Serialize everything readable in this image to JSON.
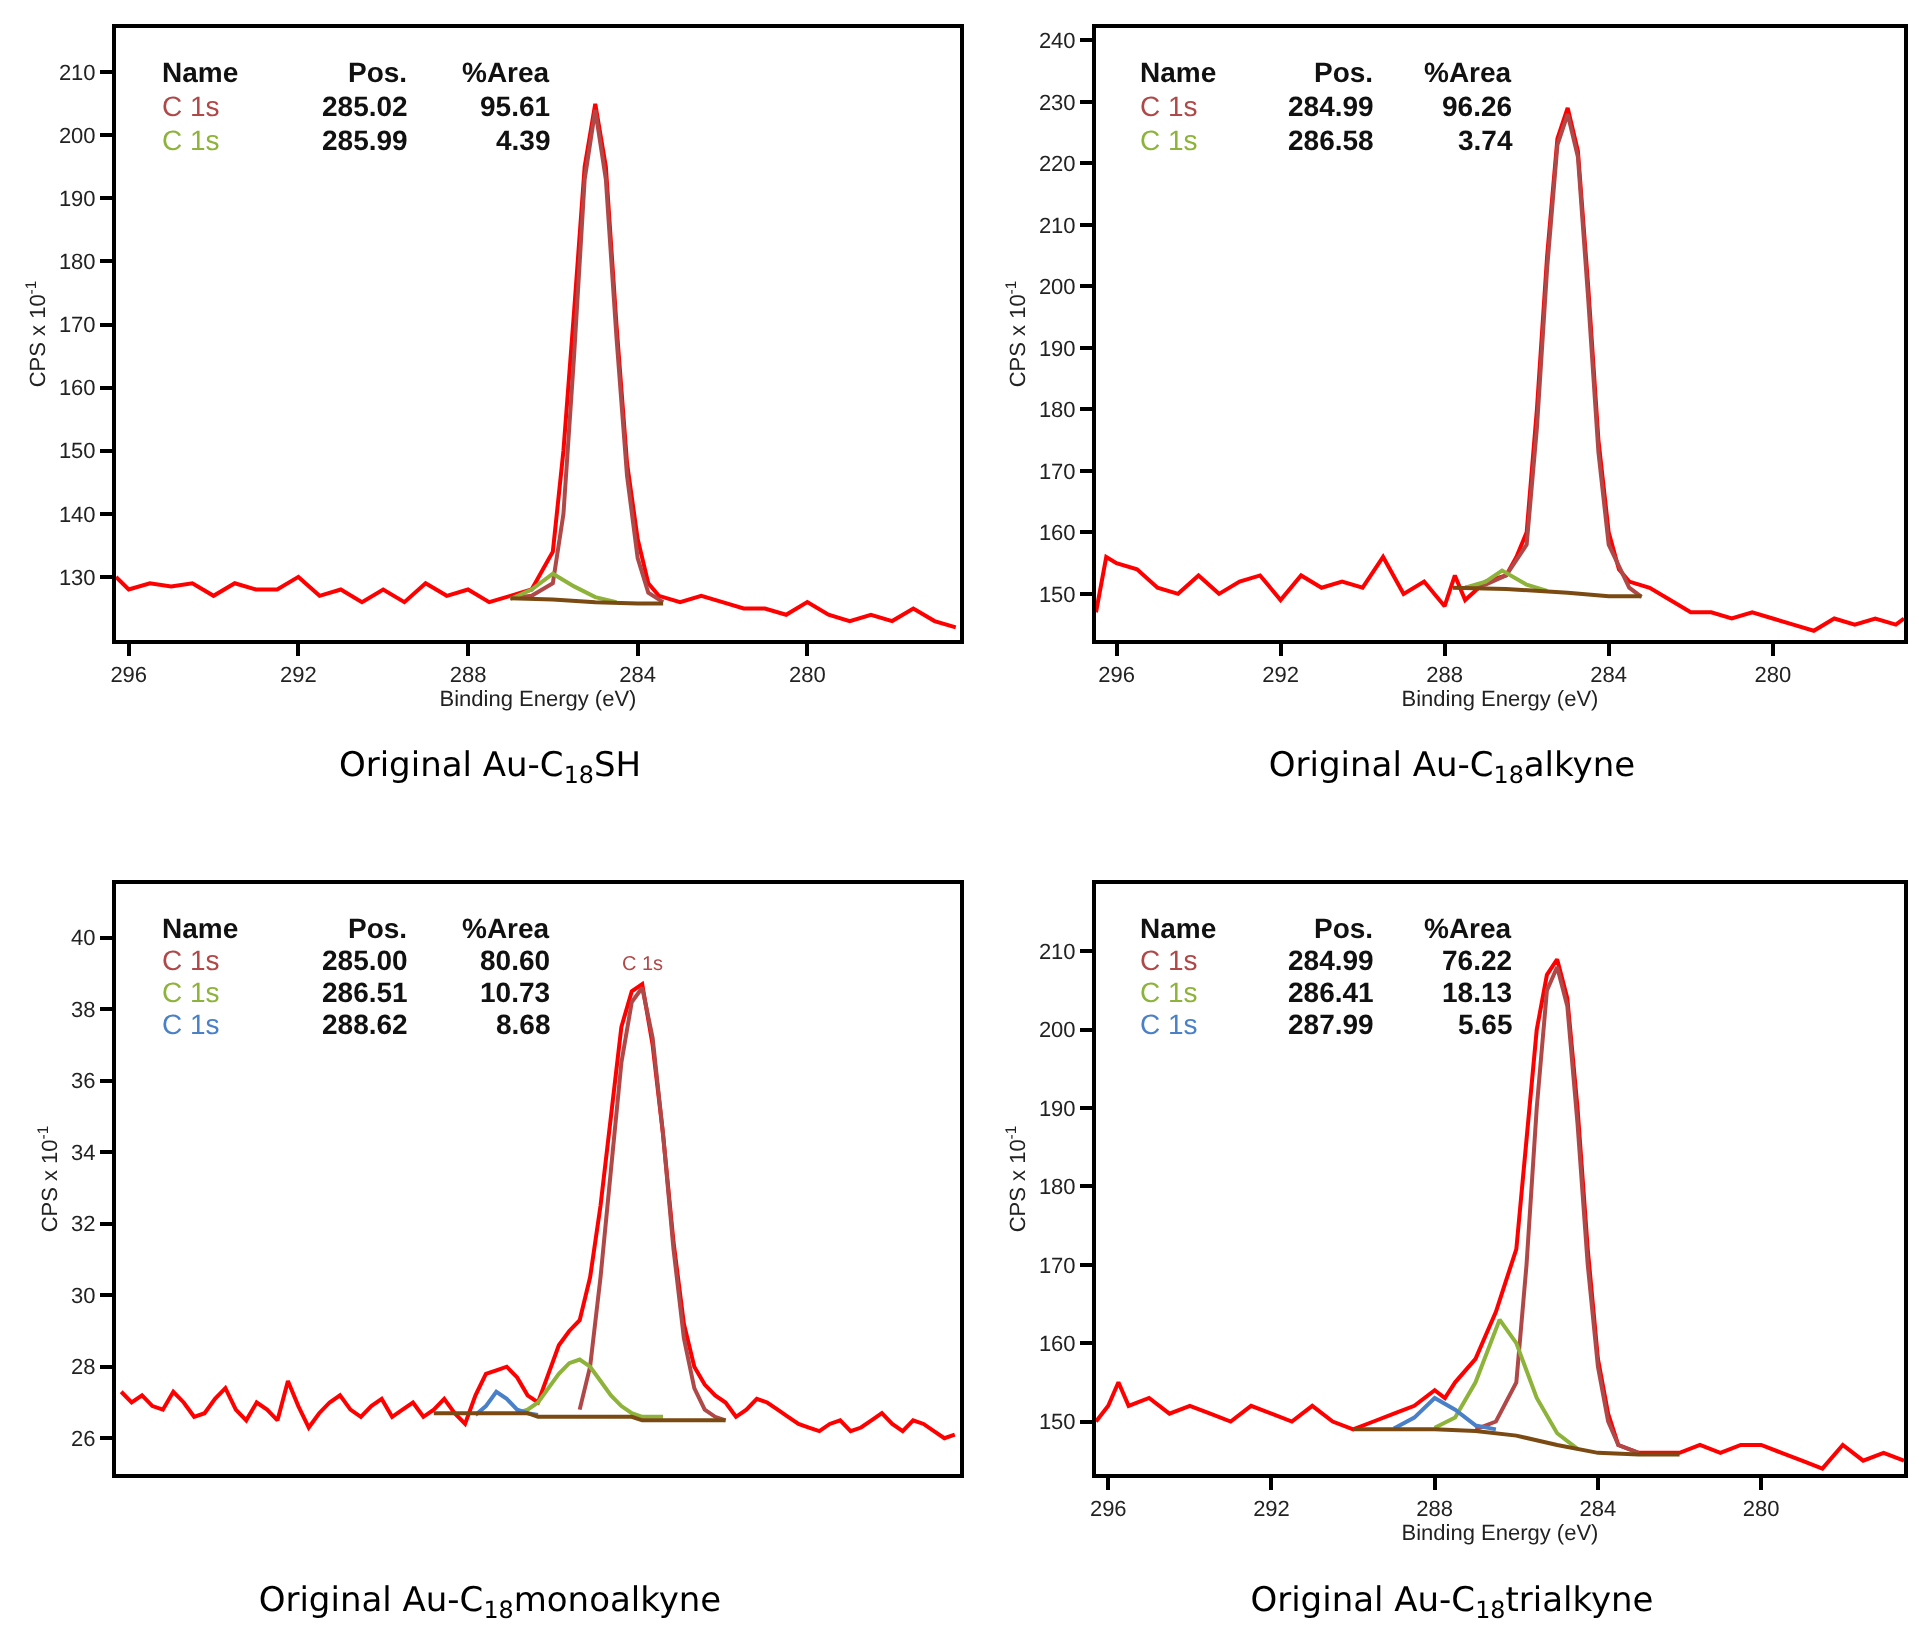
{
  "chart_data": [
    {
      "type": "line",
      "title": "Original Au-C$_{18}$SH",
      "xlabel": "Binding Energy (eV)",
      "ylabel": "CPS x 10$^{-1}$",
      "xlim": [
        296.3,
        276.4
      ],
      "xticks": [
        296,
        292,
        288,
        284,
        280
      ],
      "ylim": [
        120,
        217
      ],
      "yticks": [
        130,
        140,
        150,
        160,
        170,
        180,
        190,
        200,
        210
      ],
      "grid": false,
      "legend": "top left",
      "marker": "none",
      "line_style": "solid",
      "annotations": [
        "Name",
        "Pos.",
        "%Area",
        "285.02",
        "95.61",
        "285.99",
        "4.39"
      ],
      "series": [
        {
          "color": "#ff0000",
          "x": [
            296.3,
            296,
            295.5,
            295,
            294.5,
            294,
            293.5,
            293,
            292.5,
            292,
            291.5,
            291,
            290.5,
            290,
            289.5,
            289,
            288.5,
            288,
            287.5,
            287,
            286.5,
            286.25,
            286,
            285.75,
            285.5,
            285.25,
            285,
            284.75,
            284.5,
            284.25,
            284,
            283.75,
            283.5,
            283,
            282.5,
            282,
            281.5,
            281,
            280.5,
            280,
            279.5,
            279,
            278.5,
            278,
            277.5,
            277,
            276.5
          ],
          "values": [
            130,
            128,
            129,
            128.5,
            129,
            127,
            129,
            128,
            128,
            130,
            127,
            128,
            126,
            128,
            126,
            129,
            127,
            128,
            126,
            127,
            128,
            131,
            134,
            150,
            172,
            195,
            205,
            195,
            170,
            148,
            136,
            129,
            127,
            126,
            127,
            126,
            125,
            125,
            124,
            126,
            124,
            123,
            124,
            123,
            125,
            123,
            122
          ]
        },
        {
          "name": "C 1s",
          "color": "#b04848",
          "x": [
            287,
            286.5,
            286,
            285.75,
            285.5,
            285.25,
            285,
            284.75,
            284.5,
            284.25,
            284,
            283.75,
            283.4
          ],
          "values": [
            126.6,
            127,
            129,
            140,
            165,
            193,
            204,
            193,
            168,
            146,
            133,
            127.5,
            126
          ]
        },
        {
          "name": "C 1s",
          "color": "#8db33a",
          "x": [
            287,
            286.5,
            286,
            285.5,
            285,
            284.5
          ],
          "values": [
            126.5,
            128,
            130.5,
            128.5,
            126.8,
            126
          ]
        },
        {
          "color": "#7a4a12",
          "x": [
            287,
            286,
            285,
            284,
            283.4
          ],
          "values": [
            126.6,
            126.4,
            126,
            125.8,
            125.8
          ]
        }
      ]
    },
    {
      "type": "line",
      "title": "Original Au-C$_{18}$alkyne",
      "xlabel": "Binding Energy (eV)",
      "ylabel": "CPS x 10$^{-1}$",
      "xlim": [
        296.5,
        276.8
      ],
      "xticks": [
        296,
        292,
        288,
        284,
        280
      ],
      "ylim": [
        142.5,
        242
      ],
      "yticks": [
        150,
        160,
        170,
        180,
        190,
        200,
        210,
        220,
        230,
        240
      ],
      "grid": false,
      "legend": "top left",
      "marker": "none",
      "line_style": "solid",
      "annotations": [
        "Name",
        "Pos.",
        "%Area",
        "284.99",
        "96.26",
        "286.58",
        "3.74"
      ],
      "series": [
        {
          "color": "#ff0000",
          "x": [
            296.5,
            296.25,
            296,
            295.5,
            295,
            294.5,
            294,
            293.5,
            293,
            292.5,
            292,
            291.5,
            291,
            290.5,
            290,
            289.5,
            289,
            288.5,
            288,
            287.75,
            287.5,
            287,
            286.5,
            286.25,
            286,
            285.75,
            285.5,
            285.25,
            285,
            284.75,
            284.5,
            284.25,
            284,
            283.75,
            283.5,
            283,
            282.5,
            282,
            281.5,
            281,
            280.5,
            280,
            279.5,
            279,
            278.5,
            278,
            277.5,
            277,
            276.8
          ],
          "values": [
            147,
            156,
            155,
            154,
            151,
            150,
            153,
            150,
            152,
            153,
            149,
            153,
            151,
            152,
            151,
            156,
            150,
            152,
            148,
            153,
            149,
            152,
            153,
            156,
            160,
            180,
            205,
            224,
            229,
            222,
            200,
            175,
            160,
            154,
            152,
            151,
            149,
            147,
            147,
            146,
            147,
            146,
            145,
            144,
            146,
            145,
            146,
            145,
            146
          ]
        },
        {
          "name": "C 1s",
          "color": "#b04848",
          "x": [
            287.5,
            287,
            286.5,
            286,
            285.75,
            285.5,
            285.25,
            285,
            284.75,
            284.5,
            284.25,
            284,
            283.5,
            283.2
          ],
          "values": [
            151,
            151.5,
            153,
            158,
            177,
            203,
            223,
            228,
            221,
            198,
            173,
            158,
            151,
            149.5
          ]
        },
        {
          "name": "C 1s",
          "color": "#8db33a",
          "x": [
            287.5,
            287,
            286.6,
            286,
            285.5
          ],
          "values": [
            151,
            152,
            153.8,
            151.5,
            150.5
          ]
        },
        {
          "color": "#7a4a12",
          "x": [
            287.8,
            286.5,
            285,
            284,
            283.2
          ],
          "values": [
            151,
            150.8,
            150.2,
            149.6,
            149.6
          ]
        }
      ]
    },
    {
      "type": "line",
      "title": "Original Au-C$_{18}$monoalkyne",
      "ylabel": "CPS x 10$^{-1}$",
      "ylim": [
        25,
        41.5
      ],
      "yticks": [
        26,
        28,
        30,
        32,
        34,
        36,
        38,
        40
      ],
      "tick_labels": "y",
      "grid": false,
      "legend": "top left",
      "marker": "none",
      "line_style": "solid",
      "categories": [
        null,
        null,
        null,
        null,
        null,
        null,
        null,
        null,
        null,
        null,
        null,
        null,
        null,
        null,
        null,
        null,
        null,
        null,
        null,
        null,
        null,
        null,
        null,
        null,
        null,
        null,
        null,
        null,
        null,
        null,
        null,
        null,
        null,
        null,
        null,
        null,
        null,
        null,
        null,
        null,
        null,
        null,
        null,
        null,
        null,
        null,
        null,
        null,
        null,
        null,
        null,
        null,
        null,
        null,
        null,
        null,
        null,
        null,
        null,
        null,
        null,
        null,
        null,
        null,
        null,
        null,
        null,
        null,
        null,
        null,
        null,
        null,
        null,
        null,
        null,
        null,
        null,
        null,
        null,
        null,
        null
      ],
      "annotations": [
        "Name",
        "Pos.",
        "%Area",
        "285.00",
        "80.60",
        "286.51",
        "10.73",
        "288.62",
        "8.68",
        "C 1s"
      ],
      "series": [
        {
          "color": "#ff0000",
          "values": [
            27.3,
            27.0,
            27.2,
            26.9,
            26.8,
            27.3,
            27.0,
            26.6,
            26.7,
            27.1,
            27.4,
            26.8,
            26.5,
            27.0,
            26.8,
            26.5,
            27.6,
            26.9,
            26.3,
            26.7,
            27.0,
            27.2,
            26.8,
            26.6,
            26.9,
            27.1,
            26.6,
            26.8,
            27.0,
            26.6,
            26.8,
            27.1,
            26.7,
            26.4,
            27.2,
            27.8,
            27.9,
            28.0,
            27.7,
            27.2,
            27.0,
            27.8,
            28.6,
            29.0,
            29.3,
            30.5,
            32.5,
            35.0,
            37.5,
            38.5,
            38.7,
            37.0,
            34.5,
            31.5,
            29.2,
            28.0,
            27.5,
            27.2,
            27.0,
            26.6,
            26.8,
            27.1,
            27.0,
            26.8,
            26.6,
            26.4,
            26.3,
            26.2,
            26.4,
            26.5,
            26.2,
            26.3,
            26.5,
            26.7,
            26.4,
            26.2,
            26.5,
            26.4,
            26.2,
            26.0,
            26.1
          ]
        },
        {
          "name": "C 1s",
          "color": "#b04848",
          "values": [
            null,
            null,
            null,
            null,
            null,
            null,
            null,
            null,
            null,
            null,
            null,
            null,
            null,
            null,
            null,
            null,
            null,
            null,
            null,
            null,
            null,
            null,
            null,
            null,
            null,
            null,
            null,
            null,
            null,
            null,
            null,
            null,
            null,
            null,
            null,
            null,
            null,
            null,
            null,
            null,
            null,
            null,
            null,
            null,
            26.8,
            28.0,
            30.5,
            33.5,
            36.5,
            38.2,
            38.6,
            37.2,
            34.5,
            31.3,
            28.8,
            27.4,
            26.8,
            26.6,
            26.5,
            null,
            null,
            null,
            null,
            null,
            null,
            null,
            null,
            null,
            null,
            null,
            null,
            null,
            null,
            null,
            null,
            null,
            null,
            null,
            null,
            null,
            null
          ]
        },
        {
          "name": "C 1s",
          "color": "#8db33a",
          "values": [
            null,
            null,
            null,
            null,
            null,
            null,
            null,
            null,
            null,
            null,
            null,
            null,
            null,
            null,
            null,
            null,
            null,
            null,
            null,
            null,
            null,
            null,
            null,
            null,
            null,
            null,
            null,
            null,
            null,
            null,
            null,
            null,
            null,
            null,
            null,
            null,
            null,
            null,
            26.7,
            26.8,
            27.0,
            27.4,
            27.8,
            28.1,
            28.2,
            28.0,
            27.6,
            27.2,
            26.9,
            26.7,
            26.6,
            26.6,
            26.6,
            null,
            null,
            null,
            null,
            null,
            null,
            null,
            null,
            null,
            null,
            null,
            null,
            null,
            null,
            null,
            null,
            null,
            null,
            null,
            null,
            null,
            null,
            null,
            null,
            null,
            null,
            null,
            null
          ]
        },
        {
          "name": "C 1s",
          "color": "#4a80c8",
          "values": [
            null,
            null,
            null,
            null,
            null,
            null,
            null,
            null,
            null,
            null,
            null,
            null,
            null,
            null,
            null,
            null,
            null,
            null,
            null,
            null,
            null,
            null,
            null,
            null,
            null,
            null,
            null,
            null,
            null,
            null,
            null,
            null,
            null,
            null,
            26.65,
            26.9,
            27.3,
            27.1,
            26.8,
            26.7,
            26.65,
            null,
            null,
            null,
            null,
            null,
            null,
            null,
            null,
            null,
            null,
            null,
            null,
            null,
            null,
            null,
            null,
            null,
            null,
            null,
            null,
            null,
            null,
            null,
            null,
            null,
            null,
            null,
            null,
            null,
            null,
            null,
            null,
            null,
            null,
            null,
            null,
            null,
            null,
            null,
            null
          ]
        },
        {
          "color": "#7a4a12",
          "values": [
            null,
            null,
            null,
            null,
            null,
            null,
            null,
            null,
            null,
            null,
            null,
            null,
            null,
            null,
            null,
            null,
            null,
            null,
            null,
            null,
            null,
            null,
            null,
            null,
            null,
            null,
            null,
            null,
            null,
            null,
            26.7,
            26.7,
            26.7,
            26.7,
            26.7,
            26.7,
            26.7,
            26.7,
            26.7,
            26.7,
            26.6,
            26.6,
            26.6,
            26.6,
            26.6,
            26.6,
            26.6,
            26.6,
            26.6,
            26.6,
            26.5,
            26.5,
            26.5,
            26.5,
            26.5,
            26.5,
            26.5,
            26.5,
            26.5,
            null,
            null,
            null,
            null,
            null,
            null,
            null,
            null,
            null,
            null,
            null,
            null,
            null,
            null,
            null,
            null,
            null,
            null,
            null,
            null,
            null,
            null
          ]
        }
      ]
    },
    {
      "type": "line",
      "title": "Original Au-C$_{18}$trialkyne",
      "xlabel": "Binding Energy (eV)",
      "ylabel": "CPS x 10$^{-1}$",
      "xlim": [
        296.3,
        276.5
      ],
      "xticks": [
        296,
        292,
        288,
        284,
        280
      ],
      "ylim": [
        143.3,
        218.6
      ],
      "yticks": [
        150,
        160,
        170,
        180,
        190,
        200,
        210
      ],
      "grid": false,
      "legend": "top left",
      "marker": "none",
      "line_style": "solid",
      "annotations": [
        "Name",
        "Pos.",
        "%Area",
        "284.99",
        "76.22",
        "286.41",
        "18.13",
        "287.99",
        "5.65"
      ],
      "series": [
        {
          "color": "#ff0000",
          "x": [
            296.3,
            296,
            295.75,
            295.5,
            295,
            294.5,
            294,
            293.5,
            293,
            292.5,
            292,
            291.5,
            291,
            290.5,
            290,
            289.5,
            289,
            288.5,
            288,
            287.75,
            287.5,
            287,
            286.75,
            286.5,
            286.25,
            286,
            285.75,
            285.5,
            285.25,
            285,
            284.75,
            284.5,
            284.25,
            284,
            283.75,
            283.5,
            283,
            282.5,
            282,
            281.5,
            281,
            280.5,
            280,
            279.5,
            279,
            278.5,
            278,
            277.5,
            277,
            276.5
          ],
          "values": [
            150,
            152,
            155,
            152,
            153,
            151,
            152,
            151,
            150,
            152,
            151,
            150,
            152,
            150,
            149,
            150,
            151,
            152,
            154,
            153,
            155,
            158,
            161,
            164,
            168,
            172,
            186,
            200,
            207,
            209,
            204,
            190,
            172,
            158,
            151,
            147,
            146,
            146,
            146,
            147,
            146,
            147,
            147,
            146,
            145,
            144,
            147,
            145,
            146,
            145
          ]
        },
        {
          "name": "C 1s",
          "color": "#b04848",
          "x": [
            287,
            286.5,
            286,
            285.75,
            285.5,
            285.25,
            285,
            284.75,
            284.5,
            284.25,
            284,
            283.75,
            283.5,
            283
          ],
          "values": [
            149,
            150,
            155,
            170,
            190,
            205,
            208,
            203,
            188,
            170,
            157,
            150,
            147,
            146
          ]
        },
        {
          "name": "C 1s",
          "color": "#8db33a",
          "x": [
            288,
            287.5,
            287,
            286.41,
            286,
            285.5,
            285,
            284.5
          ],
          "values": [
            149.2,
            150.5,
            155,
            163,
            160,
            153,
            148.5,
            146.5
          ]
        },
        {
          "name": "C 1s",
          "color": "#4a80c8",
          "x": [
            289,
            288.5,
            288,
            287.5,
            287,
            286.5
          ],
          "values": [
            149.1,
            150.5,
            153,
            151.5,
            149.5,
            149
          ]
        },
        {
          "color": "#7a4a12",
          "x": [
            290,
            288,
            287,
            286,
            285,
            284,
            283,
            282
          ],
          "values": [
            149,
            149,
            148.8,
            148.2,
            147,
            146,
            145.8,
            145.8
          ]
        }
      ]
    }
  ]
}
